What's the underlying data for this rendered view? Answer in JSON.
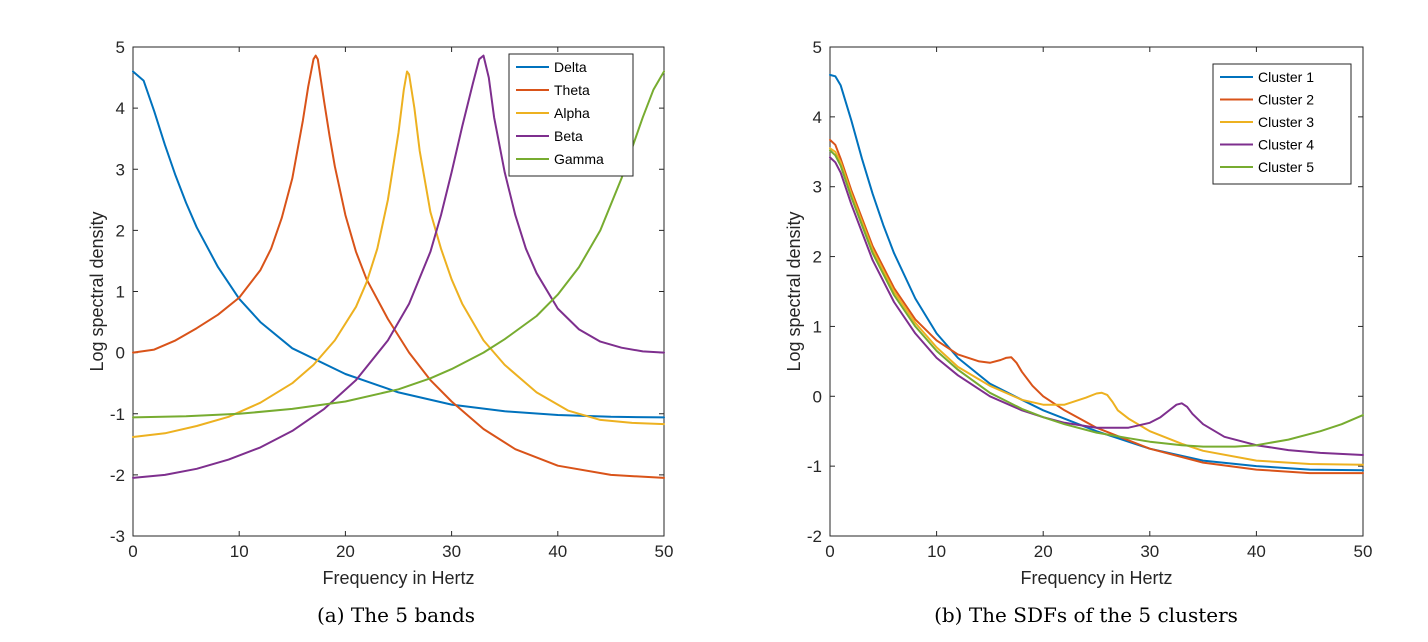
{
  "chart_data": [
    {
      "type": "line",
      "caption": "(a)  The 5 bands",
      "xlabel": "Frequency in Hertz",
      "ylabel": "Log spectral density",
      "xlim": [
        0,
        50
      ],
      "ylim": [
        -3,
        5
      ],
      "xticks": [
        0,
        10,
        20,
        30,
        40,
        50
      ],
      "yticks": [
        -3,
        -2,
        -1,
        0,
        1,
        2,
        3,
        4,
        5
      ],
      "legend_position": "top-right",
      "series": [
        {
          "name": "Delta",
          "color": "#0072BD",
          "x": [
            0,
            1,
            2,
            3,
            4,
            5,
            6,
            8,
            10,
            12,
            15,
            20,
            25,
            30,
            35,
            40,
            45,
            50
          ],
          "y": [
            4.6,
            4.45,
            3.95,
            3.4,
            2.9,
            2.45,
            2.05,
            1.4,
            0.88,
            0.5,
            0.07,
            -0.35,
            -0.65,
            -0.85,
            -0.96,
            -1.02,
            -1.05,
            -1.06
          ]
        },
        {
          "name": "Theta",
          "color": "#D95319",
          "x": [
            0,
            2,
            4,
            6,
            8,
            10,
            12,
            13,
            14,
            15,
            16,
            16.5,
            17,
            17.2,
            17.4,
            18,
            18.5,
            19,
            20,
            21,
            22,
            24,
            26,
            28,
            30,
            33,
            36,
            40,
            45,
            50
          ],
          "y": [
            0.0,
            0.05,
            0.2,
            0.4,
            0.62,
            0.9,
            1.35,
            1.7,
            2.2,
            2.85,
            3.8,
            4.35,
            4.8,
            4.86,
            4.8,
            4.1,
            3.55,
            3.05,
            2.25,
            1.65,
            1.2,
            0.55,
            0.0,
            -0.45,
            -0.8,
            -1.25,
            -1.58,
            -1.85,
            -2.0,
            -2.05
          ]
        },
        {
          "name": "Alpha",
          "color": "#EDB120",
          "x": [
            0,
            3,
            6,
            9,
            12,
            15,
            17,
            19,
            21,
            22,
            23,
            24,
            25,
            25.5,
            25.8,
            26,
            26.5,
            27,
            28,
            29,
            30,
            31,
            33,
            35,
            38,
            41,
            44,
            47,
            50
          ],
          "y": [
            -1.38,
            -1.32,
            -1.2,
            -1.05,
            -0.82,
            -0.5,
            -0.2,
            0.2,
            0.75,
            1.15,
            1.7,
            2.5,
            3.6,
            4.3,
            4.6,
            4.55,
            4.0,
            3.3,
            2.3,
            1.7,
            1.2,
            0.8,
            0.2,
            -0.2,
            -0.65,
            -0.95,
            -1.1,
            -1.15,
            -1.17
          ]
        },
        {
          "name": "Beta",
          "color": "#7E2F8E",
          "x": [
            0,
            3,
            6,
            9,
            12,
            15,
            18,
            21,
            24,
            26,
            28,
            29,
            30,
            31,
            32,
            32.6,
            33,
            33.5,
            34,
            35,
            36,
            37,
            38,
            40,
            42,
            44,
            46,
            48,
            50
          ],
          "y": [
            -2.05,
            -2.0,
            -1.9,
            -1.75,
            -1.55,
            -1.28,
            -0.92,
            -0.45,
            0.2,
            0.8,
            1.65,
            2.25,
            2.95,
            3.7,
            4.4,
            4.8,
            4.86,
            4.5,
            3.85,
            2.95,
            2.25,
            1.7,
            1.3,
            0.72,
            0.38,
            0.18,
            0.08,
            0.02,
            0.0
          ]
        },
        {
          "name": "Gamma",
          "color": "#77AC30",
          "x": [
            0,
            5,
            10,
            15,
            20,
            25,
            28,
            30,
            33,
            35,
            38,
            40,
            42,
            44,
            46,
            47,
            48,
            49,
            50
          ],
          "y": [
            -1.06,
            -1.04,
            -1.0,
            -0.92,
            -0.8,
            -0.6,
            -0.42,
            -0.27,
            0.0,
            0.22,
            0.6,
            0.95,
            1.4,
            2.0,
            2.85,
            3.35,
            3.85,
            4.3,
            4.6
          ]
        }
      ]
    },
    {
      "type": "line",
      "caption": "(b)  The SDFs of the 5 clusters",
      "xlabel": "Frequency in Hertz",
      "ylabel": "Log spectral density",
      "xlim": [
        0,
        50
      ],
      "ylim": [
        -2,
        5
      ],
      "xticks": [
        0,
        10,
        20,
        30,
        40,
        50
      ],
      "yticks": [
        -2,
        -1,
        0,
        1,
        2,
        3,
        4,
        5
      ],
      "legend_position": "top-right",
      "series": [
        {
          "name": "Cluster 1",
          "color": "#0072BD",
          "x": [
            0,
            0.5,
            1,
            2,
            3,
            4,
            5,
            6,
            8,
            10,
            12,
            15,
            18,
            20,
            25,
            30,
            35,
            40,
            45,
            50
          ],
          "y": [
            4.6,
            4.58,
            4.45,
            3.95,
            3.4,
            2.9,
            2.45,
            2.05,
            1.4,
            0.9,
            0.55,
            0.18,
            -0.05,
            -0.2,
            -0.5,
            -0.75,
            -0.92,
            -1.0,
            -1.05,
            -1.06
          ]
        },
        {
          "name": "Cluster 2",
          "color": "#D95319",
          "x": [
            0,
            0.5,
            1,
            2,
            4,
            6,
            8,
            10,
            12,
            14,
            15,
            16,
            16.5,
            17,
            17.5,
            18,
            19,
            20,
            22,
            25,
            30,
            35,
            40,
            45,
            50
          ],
          "y": [
            3.67,
            3.6,
            3.4,
            2.95,
            2.15,
            1.55,
            1.1,
            0.8,
            0.6,
            0.5,
            0.48,
            0.52,
            0.55,
            0.56,
            0.48,
            0.35,
            0.15,
            0.0,
            -0.2,
            -0.45,
            -0.75,
            -0.95,
            -1.05,
            -1.1,
            -1.1
          ]
        },
        {
          "name": "Cluster 3",
          "color": "#EDB120",
          "x": [
            0,
            0.5,
            1,
            2,
            4,
            6,
            8,
            10,
            12,
            15,
            18,
            20,
            22,
            24,
            25,
            25.5,
            26,
            26.5,
            27,
            28,
            30,
            33,
            35,
            40,
            45,
            50
          ],
          "y": [
            3.55,
            3.5,
            3.35,
            2.9,
            2.1,
            1.5,
            1.05,
            0.7,
            0.42,
            0.15,
            -0.05,
            -0.12,
            -0.12,
            -0.02,
            0.04,
            0.05,
            0.02,
            -0.08,
            -0.2,
            -0.32,
            -0.5,
            -0.68,
            -0.78,
            -0.92,
            -0.97,
            -0.98
          ]
        },
        {
          "name": "Cluster 4",
          "color": "#7E2F8E",
          "x": [
            0,
            0.5,
            1,
            2,
            4,
            6,
            8,
            10,
            12,
            15,
            18,
            20,
            22,
            25,
            28,
            30,
            31,
            32,
            32.5,
            33,
            33.5,
            34,
            35,
            37,
            40,
            43,
            46,
            50
          ],
          "y": [
            3.42,
            3.35,
            3.2,
            2.75,
            1.95,
            1.35,
            0.9,
            0.55,
            0.3,
            0.0,
            -0.2,
            -0.3,
            -0.38,
            -0.45,
            -0.45,
            -0.38,
            -0.3,
            -0.18,
            -0.12,
            -0.1,
            -0.15,
            -0.25,
            -0.4,
            -0.58,
            -0.7,
            -0.77,
            -0.81,
            -0.84
          ]
        },
        {
          "name": "Cluster 5",
          "color": "#77AC30",
          "x": [
            0,
            0.5,
            1,
            2,
            4,
            6,
            8,
            10,
            12,
            15,
            18,
            20,
            22,
            25,
            28,
            30,
            33,
            35,
            38,
            40,
            43,
            46,
            48,
            50
          ],
          "y": [
            3.52,
            3.45,
            3.3,
            2.85,
            2.05,
            1.45,
            1.0,
            0.65,
            0.38,
            0.05,
            -0.18,
            -0.3,
            -0.4,
            -0.52,
            -0.6,
            -0.65,
            -0.7,
            -0.72,
            -0.72,
            -0.7,
            -0.62,
            -0.5,
            -0.4,
            -0.27
          ]
        }
      ]
    }
  ]
}
